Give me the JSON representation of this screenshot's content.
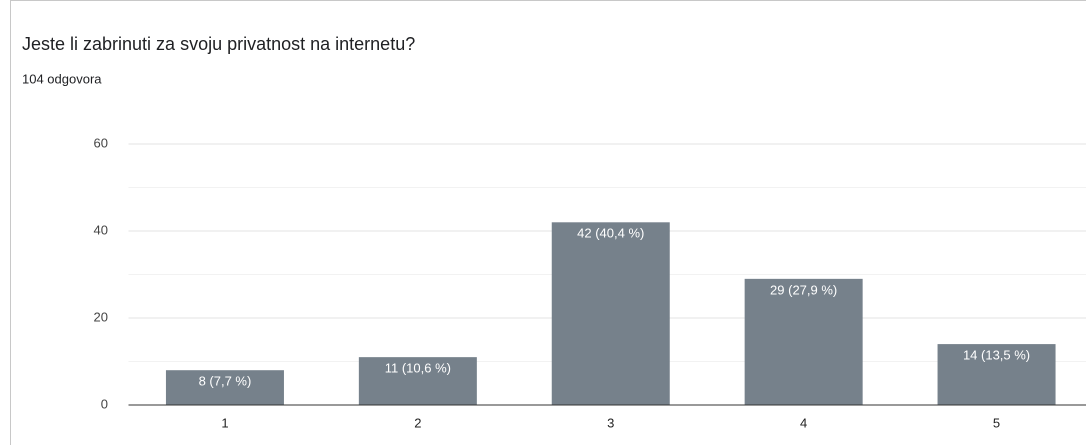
{
  "chart_data": {
    "type": "bar",
    "title": "Jeste li zabrinuti za svoju privatnost na internetu?",
    "subtitle": "104 odgovora",
    "categories": [
      "1",
      "2",
      "3",
      "4",
      "5"
    ],
    "values": [
      8,
      11,
      42,
      29,
      14
    ],
    "value_labels": [
      "8 (7,7 %)",
      "11 (10,6 %)",
      "42 (40,4 %)",
      "29 (27,9 %)",
      "14 (13,5 %)"
    ],
    "color": "#76818b",
    "ylim": [
      0,
      60
    ],
    "yticks": [
      0,
      20,
      40,
      60
    ],
    "minor_yticks": [
      10,
      30,
      50
    ],
    "grid": true
  }
}
